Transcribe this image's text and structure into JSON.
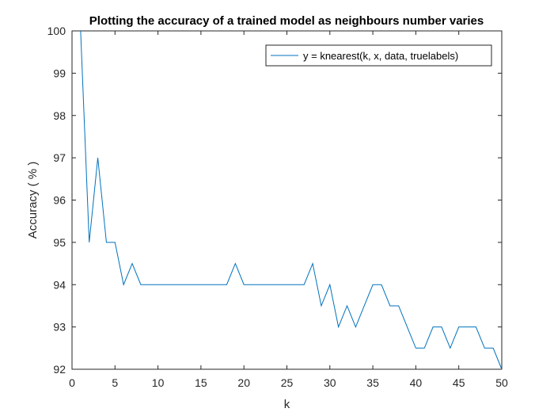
{
  "chart_data": {
    "type": "line",
    "title": "Plotting the accuracy of a trained model as neighbours number varies",
    "xlabel": "k",
    "ylabel": "Accuracy ( % )",
    "xlim": [
      0,
      50
    ],
    "ylim": [
      92,
      100
    ],
    "xticks": [
      0,
      5,
      10,
      15,
      20,
      25,
      30,
      35,
      40,
      45,
      50
    ],
    "yticks": [
      92,
      93,
      94,
      95,
      96,
      97,
      98,
      99,
      100
    ],
    "grid": false,
    "legend_position": "top-right",
    "series": [
      {
        "name": "y = knearest(k, x, data, truelabels)",
        "color": "#0072BD",
        "x": [
          1,
          2,
          3,
          4,
          5,
          6,
          7,
          8,
          9,
          10,
          11,
          12,
          13,
          14,
          15,
          16,
          17,
          18,
          19,
          20,
          21,
          22,
          23,
          24,
          25,
          26,
          27,
          28,
          29,
          30,
          31,
          32,
          33,
          34,
          35,
          36,
          37,
          38,
          39,
          40,
          41,
          42,
          43,
          44,
          45,
          46,
          47,
          48,
          49,
          50
        ],
        "y": [
          100,
          95,
          97,
          95,
          95,
          94,
          94.5,
          94,
          94,
          94,
          94,
          94,
          94,
          94,
          94,
          94,
          94,
          94,
          94.5,
          94,
          94,
          94,
          94,
          94,
          94,
          94,
          94,
          94.5,
          93.5,
          94,
          93,
          93.5,
          93,
          93.5,
          94,
          94,
          93.5,
          93.5,
          93,
          92.5,
          92.5,
          93,
          93,
          92.5,
          93,
          93,
          93,
          92.5,
          92.5,
          92
        ]
      }
    ]
  }
}
